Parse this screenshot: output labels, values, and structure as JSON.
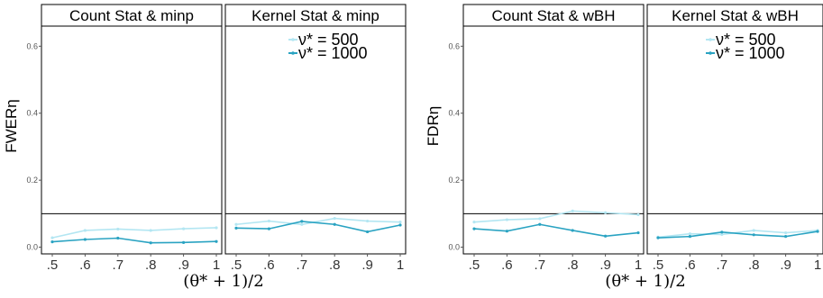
{
  "colors": {
    "series_500": "#b3e6f2",
    "series_1000": "#2aa3c2",
    "axis": "#000000",
    "strip_bg": "#ffffff"
  },
  "chart_data": [
    {
      "type": "line",
      "strip": "Count Stat & minp",
      "ylabel": "FWERη",
      "xlabel": "(θ* + 1)/2",
      "x": [
        0.5,
        0.6,
        0.7,
        0.8,
        0.9,
        1.0
      ],
      "x_tick_labels": [
        ".5",
        ".6",
        ".7",
        ".8",
        ".9",
        "1"
      ],
      "ylim": [
        -0.02,
        0.66
      ],
      "y_ticks": [
        0.0,
        0.2,
        0.4,
        0.6
      ],
      "y_tick_labels": [
        "0.0",
        "0.2",
        "0.4",
        "0.6"
      ],
      "reference_line": 0.1,
      "series": [
        {
          "name": "ν* = 500",
          "color_key": "series_500",
          "values": [
            0.028,
            0.05,
            0.054,
            0.05,
            0.055,
            0.058
          ]
        },
        {
          "name": "ν* = 1000",
          "color_key": "series_1000",
          "values": [
            0.016,
            0.023,
            0.027,
            0.013,
            0.014,
            0.017
          ]
        }
      ]
    },
    {
      "type": "line",
      "strip": "Kernel Stat & minp",
      "x": [
        0.5,
        0.6,
        0.7,
        0.8,
        0.9,
        1.0
      ],
      "x_tick_labels": [
        ".5",
        ".6",
        ".7",
        ".8",
        ".9",
        "1"
      ],
      "ylim": [
        -0.02,
        0.66
      ],
      "reference_line": 0.1,
      "legend": "top-right",
      "series": [
        {
          "name": "ν* = 500",
          "color_key": "series_500",
          "values": [
            0.068,
            0.078,
            0.068,
            0.086,
            0.078,
            0.075
          ]
        },
        {
          "name": "ν* = 1000",
          "color_key": "series_1000",
          "values": [
            0.057,
            0.055,
            0.077,
            0.068,
            0.046,
            0.066
          ]
        }
      ]
    },
    {
      "type": "line",
      "strip": "Count Stat & wBH",
      "ylabel": "FDRη",
      "xlabel": "(θ* + 1)/2",
      "x": [
        0.5,
        0.6,
        0.7,
        0.8,
        0.9,
        1.0
      ],
      "x_tick_labels": [
        ".5",
        ".6",
        ".7",
        ".8",
        ".9",
        "1"
      ],
      "ylim": [
        -0.02,
        0.66
      ],
      "y_ticks": [
        0.0,
        0.2,
        0.4,
        0.6
      ],
      "y_tick_labels": [
        "0.0",
        "0.2",
        "0.4",
        "0.6"
      ],
      "reference_line": 0.1,
      "series": [
        {
          "name": "ν* = 500",
          "color_key": "series_500",
          "values": [
            0.075,
            0.082,
            0.085,
            0.108,
            0.103,
            0.097
          ]
        },
        {
          "name": "ν* = 1000",
          "color_key": "series_1000",
          "values": [
            0.055,
            0.048,
            0.068,
            0.05,
            0.033,
            0.043
          ]
        }
      ]
    },
    {
      "type": "line",
      "strip": "Kernel Stat & wBH",
      "x": [
        0.5,
        0.6,
        0.7,
        0.8,
        0.9,
        1.0
      ],
      "x_tick_labels": [
        ".5",
        ".6",
        ".7",
        ".8",
        ".9",
        "1"
      ],
      "ylim": [
        -0.02,
        0.66
      ],
      "reference_line": 0.1,
      "legend": "top-right",
      "series": [
        {
          "name": "ν* = 500",
          "color_key": "series_500",
          "values": [
            0.03,
            0.04,
            0.038,
            0.05,
            0.043,
            0.05
          ]
        },
        {
          "name": "ν* = 1000",
          "color_key": "series_1000",
          "values": [
            0.028,
            0.032,
            0.045,
            0.037,
            0.032,
            0.047
          ]
        }
      ]
    }
  ]
}
